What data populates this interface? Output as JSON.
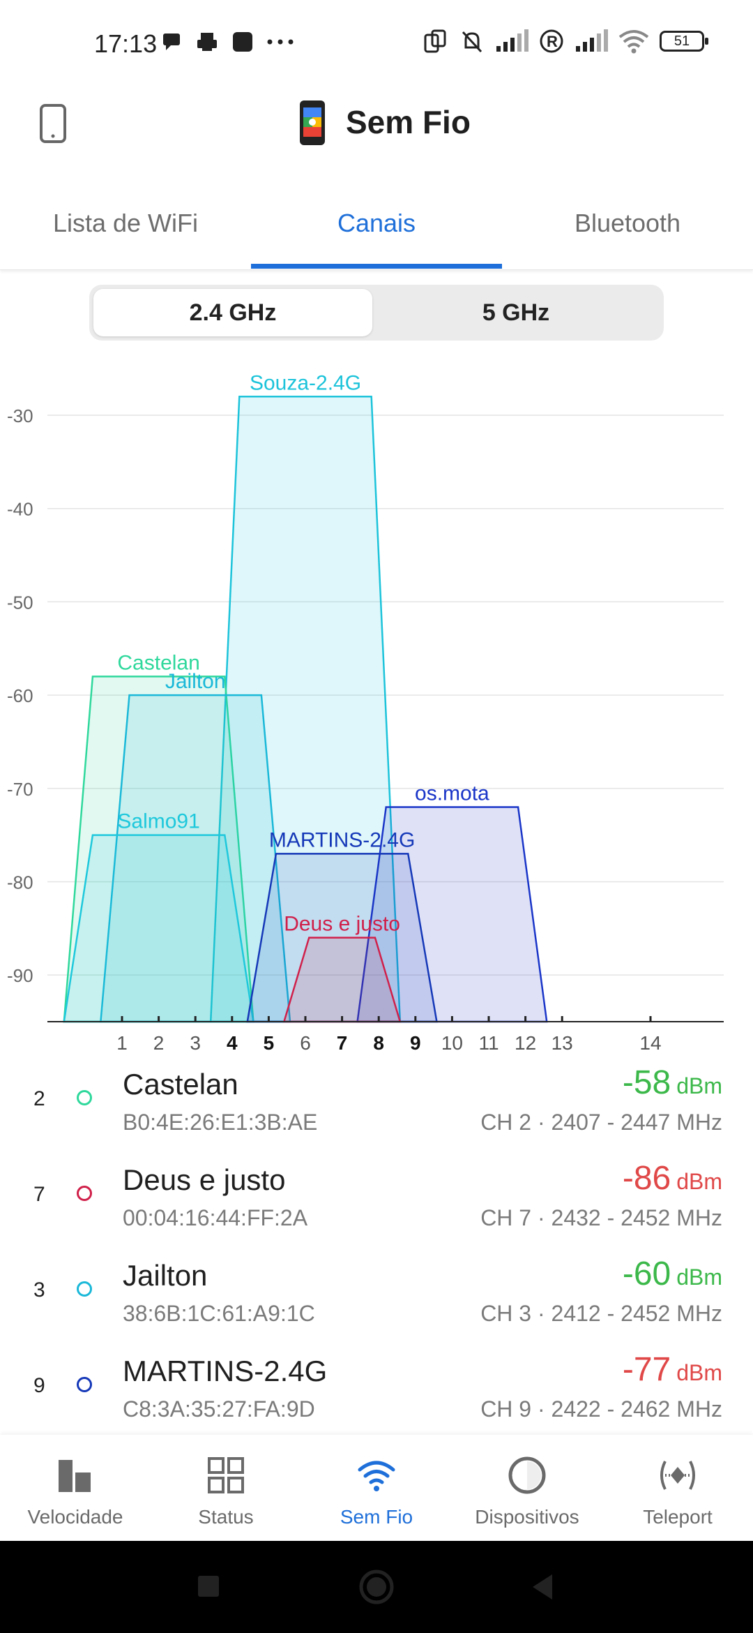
{
  "status_bar": {
    "time": "17:13",
    "battery": "51"
  },
  "header": {
    "title": "Sem Fio"
  },
  "tabs": [
    {
      "label": "Lista de WiFi",
      "active": false
    },
    {
      "label": "Canais",
      "active": true
    },
    {
      "label": "Bluetooth",
      "active": false
    }
  ],
  "band_toggle": {
    "options": [
      "2.4 GHz",
      "5 GHz"
    ],
    "selected": "2.4 GHz"
  },
  "chart_data": {
    "type": "area",
    "y_ticks": [
      "-30",
      "-40",
      "-50",
      "-60",
      "-70",
      "-80",
      "-90"
    ],
    "x_ticks": [
      {
        "label": "1",
        "bold": false
      },
      {
        "label": "2",
        "bold": false
      },
      {
        "label": "3",
        "bold": false
      },
      {
        "label": "4",
        "bold": true
      },
      {
        "label": "5",
        "bold": true
      },
      {
        "label": "6",
        "bold": false
      },
      {
        "label": "7",
        "bold": true
      },
      {
        "label": "8",
        "bold": true
      },
      {
        "label": "9",
        "bold": true
      },
      {
        "label": "10",
        "bold": false
      },
      {
        "label": "11",
        "bold": false
      },
      {
        "label": "12",
        "bold": false
      },
      {
        "label": "13",
        "bold": false
      },
      {
        "label": "14",
        "bold": false
      }
    ],
    "ylim": [
      -95,
      -26
    ],
    "series": [
      {
        "name": "Souza-2.4G",
        "center": 6,
        "low": 4,
        "high": 8,
        "dbm": -28,
        "color": "#1cc3da"
      },
      {
        "name": "Castelan",
        "center": 2,
        "low": 0,
        "high": 4,
        "dbm": -58,
        "color": "#2fd89c"
      },
      {
        "name": "Jailton",
        "center": 3,
        "low": 1,
        "high": 5,
        "dbm": -60,
        "color": "#1ab8d8"
      },
      {
        "name": "os.mota",
        "center": 10,
        "low": 8,
        "high": 12,
        "dbm": -72,
        "color": "#1a35c8"
      },
      {
        "name": "Salmo91",
        "center": 2,
        "low": 0,
        "high": 4,
        "dbm": -75,
        "color": "#1ec8dc"
      },
      {
        "name": "MARTINS-2.4G",
        "center": 7,
        "low": 5,
        "high": 9,
        "dbm": -77,
        "color": "#1538b8"
      },
      {
        "name": "Deus e justo",
        "center": 7,
        "low": 6,
        "high": 8,
        "dbm": -86,
        "color": "#d0204a"
      }
    ]
  },
  "networks": [
    {
      "channel": "2",
      "name": "Castelan",
      "mac": "B0:4E:26:E1:3B:AE",
      "signal": "-58",
      "unit": "dBm",
      "freq": "CH 2 · 2407 - 2447 MHz",
      "dot": "#2fd89c",
      "signal_color": "#3cb84a"
    },
    {
      "channel": "7",
      "name": "Deus e justo",
      "mac": "00:04:16:44:FF:2A",
      "signal": "-86",
      "unit": "dBm",
      "freq": "CH 7 · 2432 - 2452 MHz",
      "dot": "#d0204a",
      "signal_color": "#e04848"
    },
    {
      "channel": "3",
      "name": "Jailton",
      "mac": "38:6B:1C:61:A9:1C",
      "signal": "-60",
      "unit": "dBm",
      "freq": "CH 3 · 2412 - 2452 MHz",
      "dot": "#1ab8d8",
      "signal_color": "#3cb84a"
    },
    {
      "channel": "9",
      "name": "MARTINS-2.4G",
      "mac": "C8:3A:35:27:FA:9D",
      "signal": "-77",
      "unit": "dBm",
      "freq": "CH 9 · 2422 - 2462 MHz",
      "dot": "#1538b8",
      "signal_color": "#e04848"
    }
  ],
  "bottom_nav": [
    {
      "label": "Velocidade",
      "icon": "speed-bars-icon",
      "active": false
    },
    {
      "label": "Status",
      "icon": "grid-icon",
      "active": false
    },
    {
      "label": "Sem Fio",
      "icon": "wifi-icon",
      "active": true
    },
    {
      "label": "Dispositivos",
      "icon": "ring-icon",
      "active": false
    },
    {
      "label": "Teleport",
      "icon": "teleport-icon",
      "active": false
    }
  ]
}
